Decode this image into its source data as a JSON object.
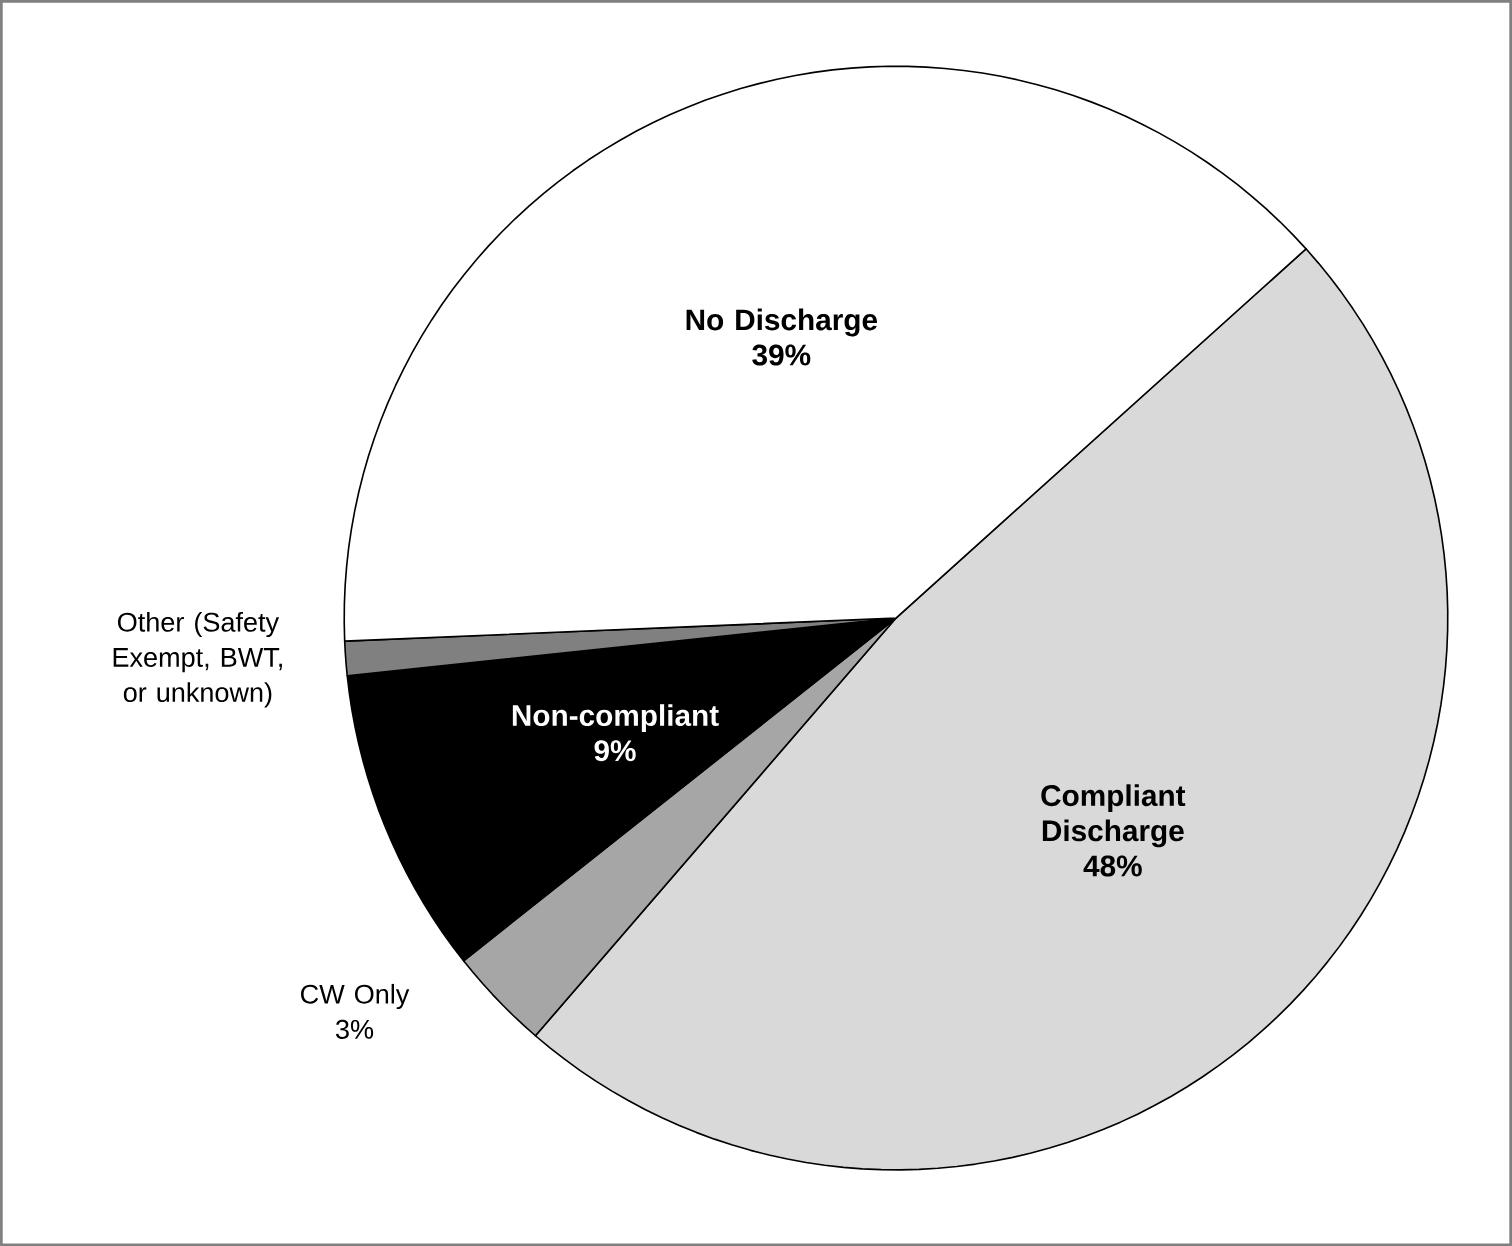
{
  "chart_data": {
    "type": "pie",
    "categories": [
      "Compliant Discharge",
      "CW Only",
      "Non-compliant",
      "Other (Safety Exempt, BWT, or unknown)",
      "No Discharge"
    ],
    "values": [
      48,
      3,
      9,
      1,
      39
    ],
    "colors": [
      "#d9d9d9",
      "#a6a6a6",
      "#000000",
      "#808080",
      "#ffffff"
    ],
    "value_labels": [
      "48%",
      "3%",
      "9%",
      null,
      "39%"
    ]
  }
}
